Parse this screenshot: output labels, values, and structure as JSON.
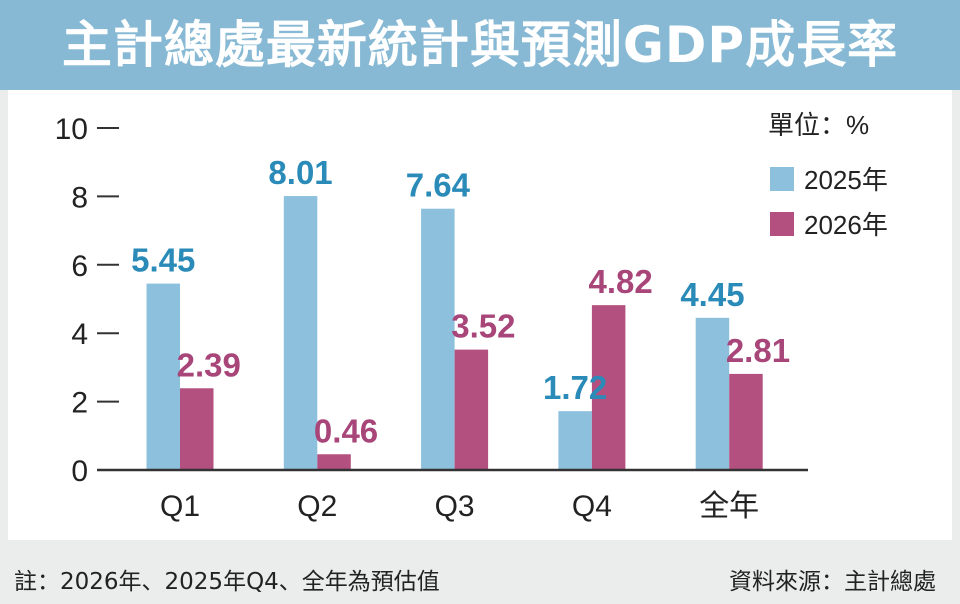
{
  "title": "主計總處最新統計與預測GDP成長率",
  "chart_data": {
    "type": "bar",
    "title": "主計總處最新統計與預測GDP成長率",
    "unit_label": "單位：%",
    "categories": [
      "Q1",
      "Q2",
      "Q3",
      "Q4",
      "全年"
    ],
    "series": [
      {
        "name": "2025年",
        "values": [
          5.45,
          8.01,
          7.64,
          1.72,
          4.45
        ],
        "color": "#8cc0dc",
        "label_color": "#2a8ab8"
      },
      {
        "name": "2026年",
        "values": [
          2.39,
          0.46,
          3.52,
          4.82,
          2.81
        ],
        "color": "#b3507f",
        "label_color": "#a8467a"
      }
    ],
    "yticks": [
      "0",
      "2",
      "4",
      "6",
      "8",
      "10"
    ],
    "ylim": [
      0,
      10
    ],
    "grid": false,
    "legend": "top-right"
  },
  "note": "註：2026年、2025年Q4、全年為預估值",
  "source": "資料來源：主計總處"
}
